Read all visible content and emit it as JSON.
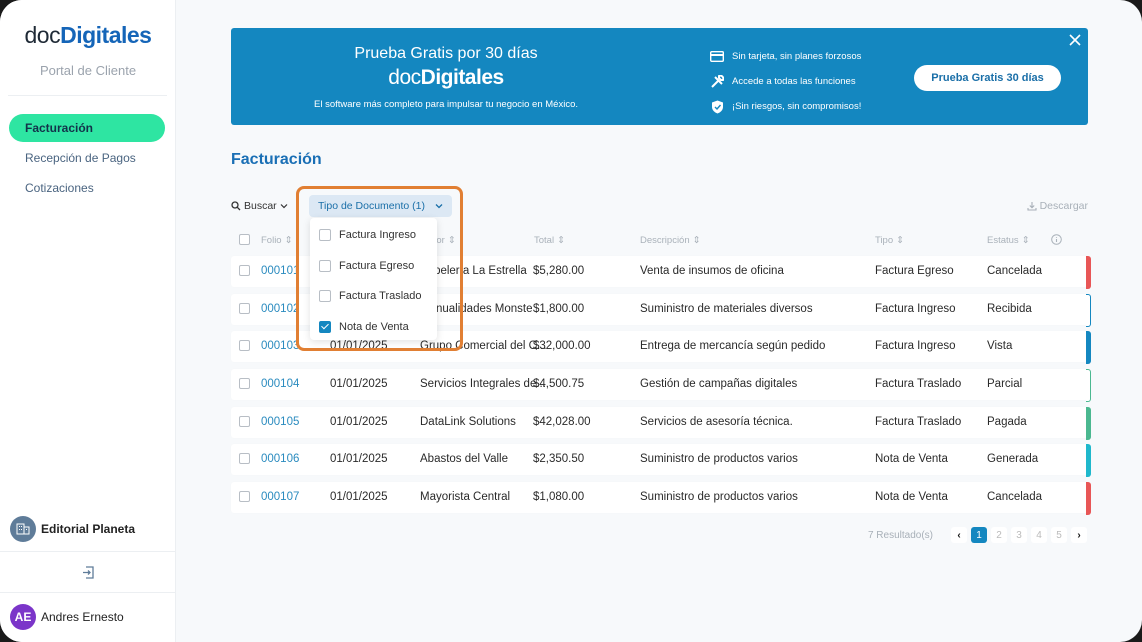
{
  "sidebar": {
    "logo": {
      "doc": "doc",
      "digitales": "Digitales"
    },
    "portal_label": "Portal de Cliente",
    "items": [
      {
        "label": "Facturación",
        "active": true
      },
      {
        "label": "Recepción de Pagos",
        "active": false
      },
      {
        "label": "Cotizaciones",
        "active": false
      }
    ],
    "company": "Editorial Planeta",
    "user": {
      "initials": "AE",
      "name": "Andres Ernesto"
    }
  },
  "banner": {
    "title": "Prueba Gratis por 30 días",
    "logo": {
      "doc": "doc",
      "digitales": "Digitales"
    },
    "subtitle": "El software más completo para impulsar tu negocio en México.",
    "features": [
      {
        "icon": "credit-card-icon",
        "text": "Sin tarjeta, sin planes forzosos"
      },
      {
        "icon": "tools-icon",
        "text": "Accede a todas las funciones"
      },
      {
        "icon": "shield-check-icon",
        "text": "¡Sin riesgos, sin compromisos!"
      }
    ],
    "cta": "Prueba Gratis 30 días"
  },
  "page": {
    "title": "Facturación"
  },
  "toolbar": {
    "search": "Buscar",
    "filter": "Tipo de Documento (1)",
    "download": "Descargar"
  },
  "filter_dropdown": {
    "options": [
      {
        "label": "Factura Ingreso",
        "checked": false
      },
      {
        "label": "Factura Egreso",
        "checked": false
      },
      {
        "label": "Factura Traslado",
        "checked": false
      },
      {
        "label": "Nota de Venta",
        "checked": true
      }
    ]
  },
  "table": {
    "columns": {
      "folio": "Folio",
      "fecha": "Fecha",
      "proveedor": "Proveedor",
      "total": "Total",
      "descripcion": "Descripción",
      "tipo": "Tipo",
      "estatus": "Estatus"
    },
    "rows": [
      {
        "folio": "000101",
        "fecha": "01/01/2025",
        "proveedor": "Papelería La Estrella",
        "total": "$5,280.00",
        "descripcion": "Venta de insumos de oficina",
        "tipo": "Factura Egreso",
        "estatus": "Cancelada",
        "color": "#e85656",
        "outline": false
      },
      {
        "folio": "000102",
        "fecha": "01/01/2025",
        "proveedor": "Manualidades Monste",
        "total": "$1,800.00",
        "descripcion": "Suministro de materiales diversos",
        "tipo": "Factura Ingreso",
        "estatus": "Recibida",
        "color": "#1487c0",
        "outline": true
      },
      {
        "folio": "000103",
        "fecha": "01/01/2025",
        "proveedor": "Grupo Comercial del C...",
        "total": "$32,000.00",
        "descripcion": "Entrega de mercancía según pedido",
        "tipo": "Factura Ingreso",
        "estatus": "Vista",
        "color": "#1487c0",
        "outline": false
      },
      {
        "folio": "000104",
        "fecha": "01/01/2025",
        "proveedor": "Servicios Integrales de...",
        "total": "$4,500.75",
        "descripcion": "Gestión de campañas digitales",
        "tipo": "Factura Traslado",
        "estatus": "Parcial",
        "color": "#4bb890",
        "outline": true
      },
      {
        "folio": "000105",
        "fecha": "01/01/2025",
        "proveedor": "DataLink Solutions",
        "total": "$42,028.00",
        "descripcion": "Servicios de asesoría técnica.",
        "tipo": "Factura Traslado",
        "estatus": "Pagada",
        "color": "#4bb890",
        "outline": false
      },
      {
        "folio": "000106",
        "fecha": "01/01/2025",
        "proveedor": "Abastos del Valle",
        "total": "$2,350.50",
        "descripcion": "Suministro de productos varios",
        "tipo": "Nota de Venta",
        "estatus": "Generada",
        "color": "#1fb8cc",
        "outline": false
      },
      {
        "folio": "000107",
        "fecha": "01/01/2025",
        "proveedor": "Mayorista Central",
        "total": "$1,080.00",
        "descripcion": "Suministro de productos varios",
        "tipo": "Nota de Venta",
        "estatus": "Cancelada",
        "color": "#e85656",
        "outline": false
      }
    ]
  },
  "pagination": {
    "results": "7 Resultado(s)",
    "pages": [
      "1",
      "2",
      "3",
      "4",
      "5"
    ],
    "current": "1",
    "prev": "‹",
    "next": "›"
  }
}
